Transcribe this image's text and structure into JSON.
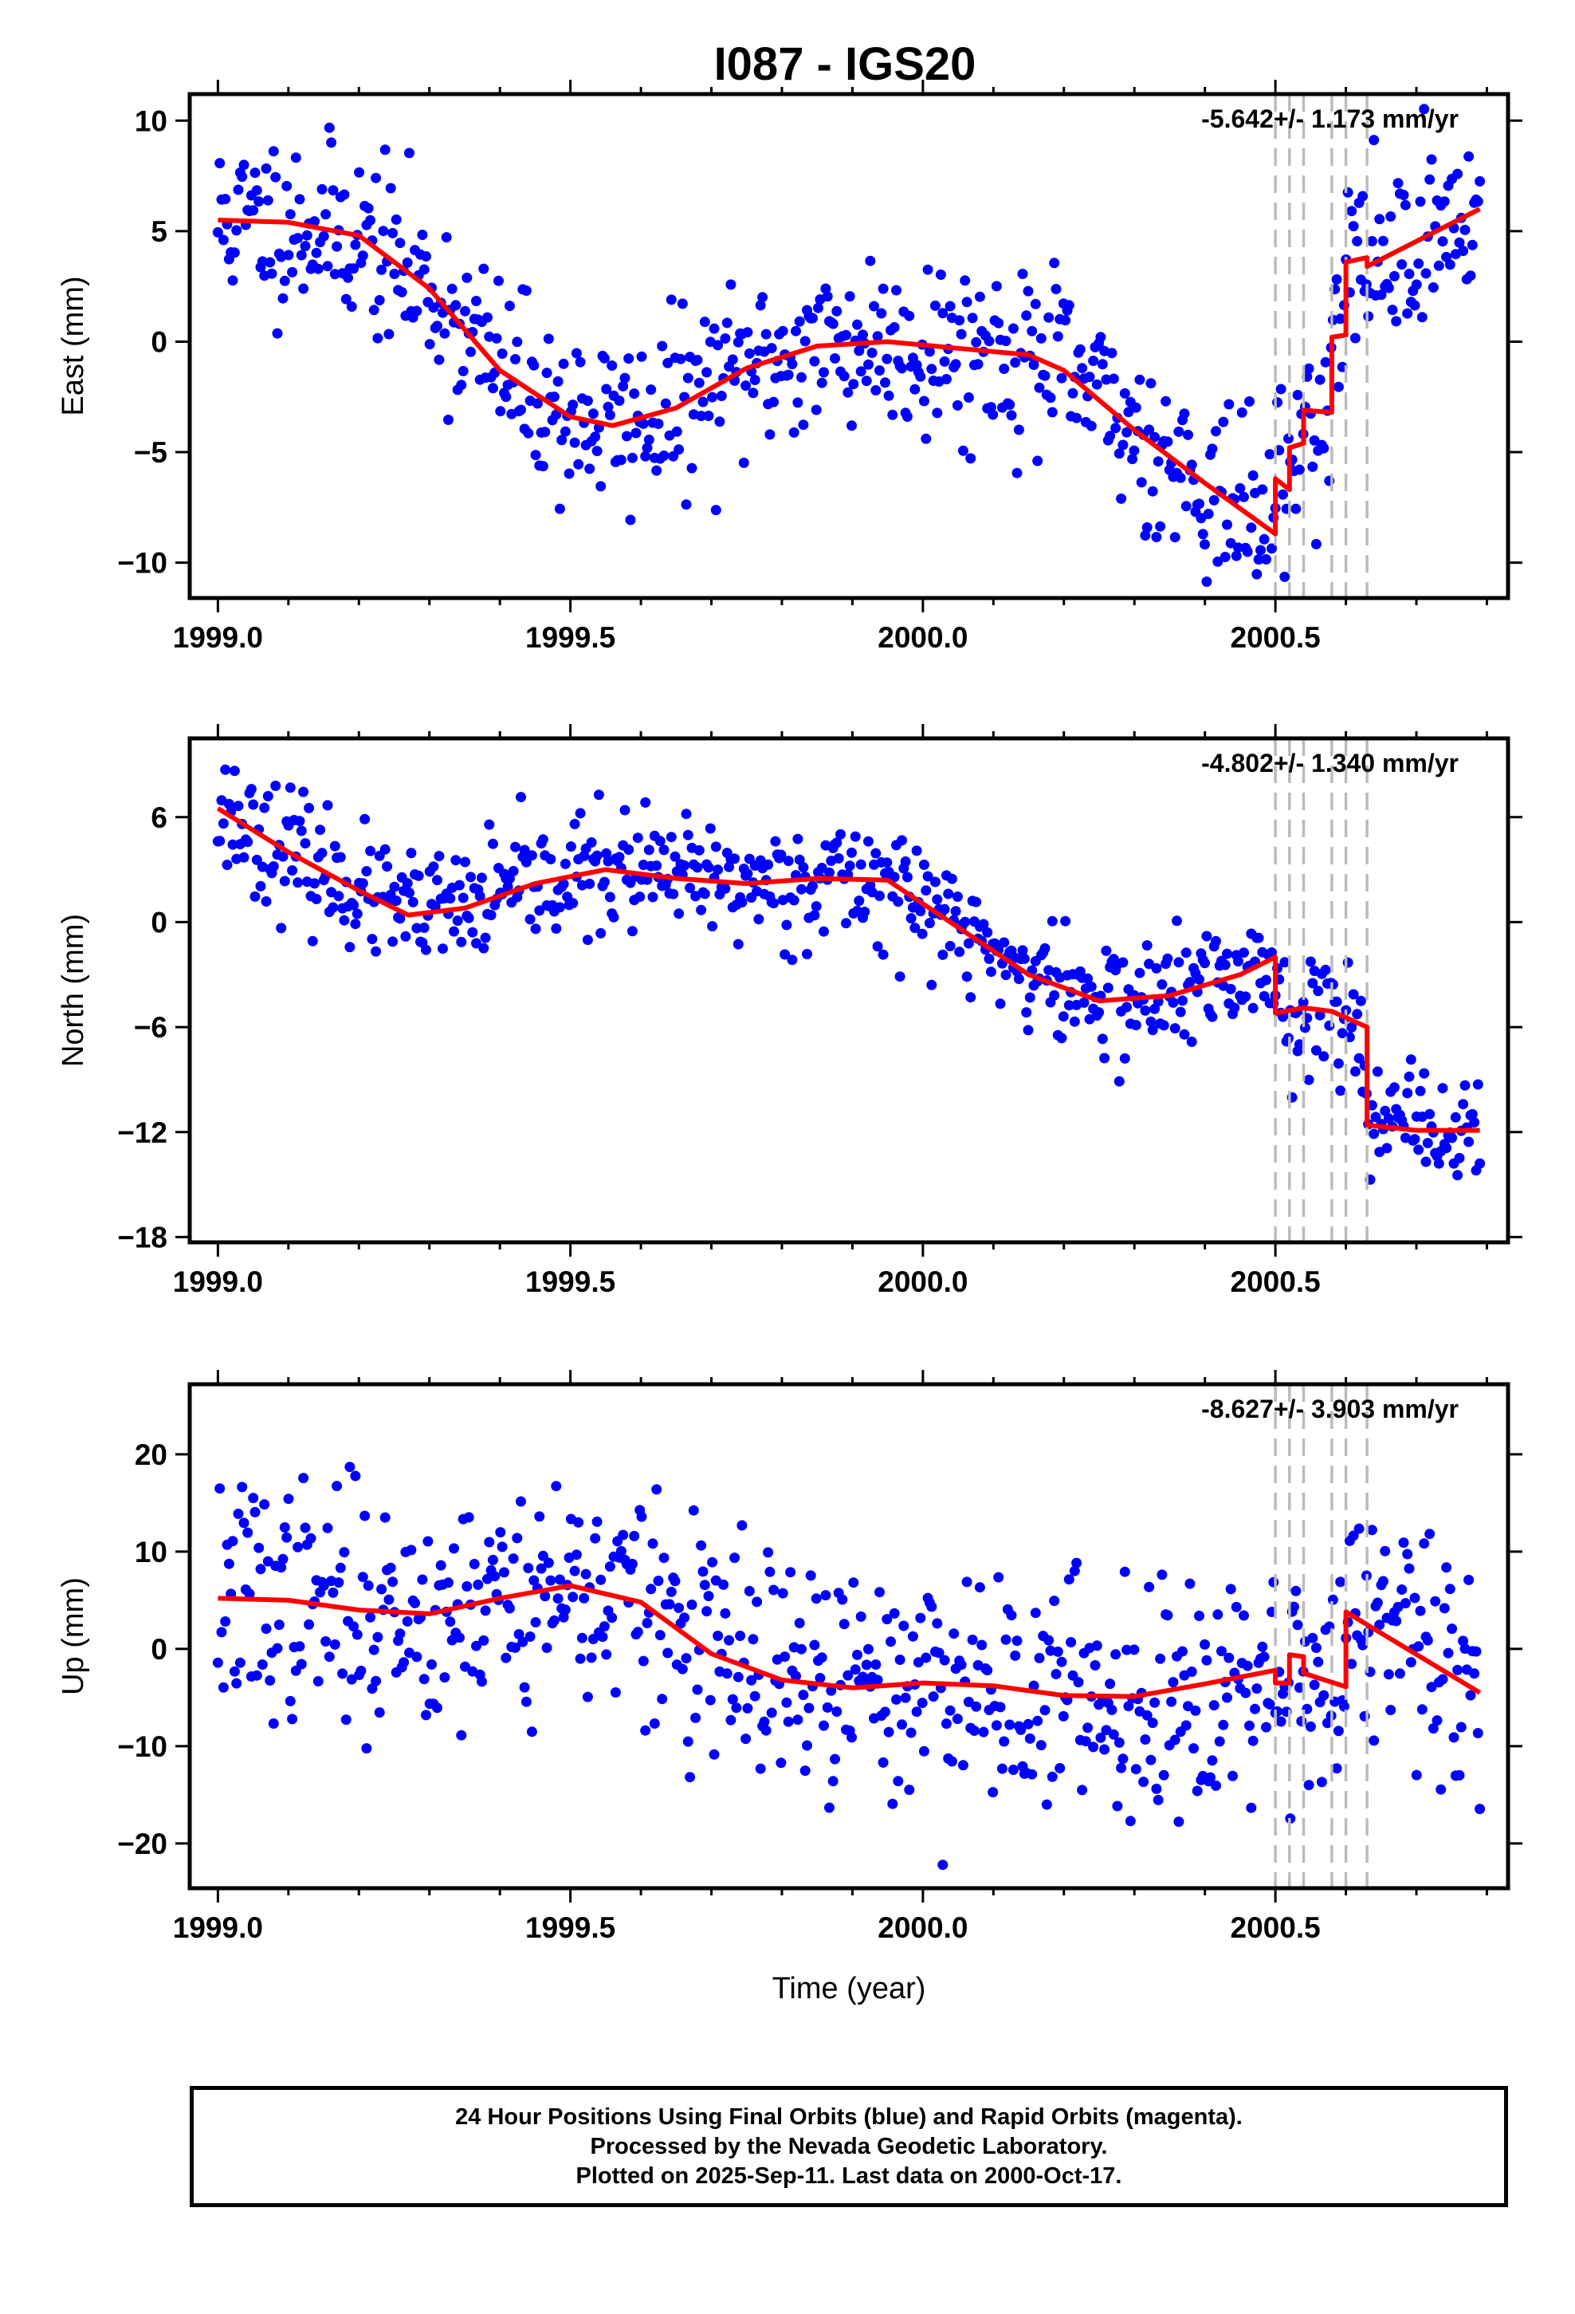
{
  "title": "I087 - IGS20",
  "colors": {
    "final_orbits": "#0000ff",
    "model_fit": "#ff0000",
    "offset_marker": "#bbbbbb",
    "frame": "#000000"
  },
  "offset_epochs": [
    2000.5,
    2000.52,
    2000.54,
    2000.58,
    2000.6,
    2000.63
  ],
  "chart_data": [
    {
      "type": "scatter",
      "panel": "east",
      "ylabel": "East (mm)",
      "xlabel": "",
      "rate_label": "-5.642+/- 1.173 mm/yr",
      "xlim": [
        1998.96,
        2000.83
      ],
      "ylim": [
        -11.6,
        11.2
      ],
      "xticks": [
        1999.0,
        1999.5,
        2000.0,
        2000.5
      ],
      "xtick_labels": [
        "1999.0",
        "1999.5",
        "2000.0",
        "2000.5"
      ],
      "yticks": [
        -10,
        -5,
        0,
        5,
        10
      ],
      "ytick_labels": [
        "−10",
        "−5",
        "0",
        "5",
        "10"
      ],
      "series": [
        {
          "name": "24 hour positions (final orbits)",
          "kind": "points",
          "noise": 2.0,
          "seed": 11,
          "points_per_year": 380,
          "x_start": 1999.0,
          "x_end": 2000.79
        },
        {
          "name": "model fit",
          "kind": "line",
          "x": [
            1999.0,
            1999.1,
            1999.2,
            1999.3,
            1999.4,
            1999.5,
            1999.56,
            1999.65,
            1999.75,
            1999.85,
            1999.95,
            2000.05,
            2000.15,
            2000.2,
            2000.3,
            2000.4,
            2000.5,
            2000.5,
            2000.52,
            2000.52,
            2000.54,
            2000.54,
            2000.58,
            2000.58,
            2000.6,
            2000.6,
            2000.63,
            2000.63,
            2000.79
          ],
          "y": [
            5.5,
            5.4,
            4.8,
            2.4,
            -1.3,
            -3.4,
            -3.8,
            -3.0,
            -1.2,
            -0.2,
            0.0,
            -0.3,
            -0.6,
            -1.3,
            -4.0,
            -6.4,
            -8.7,
            -6.2,
            -6.7,
            -4.8,
            -4.6,
            -3.1,
            -3.2,
            0.2,
            0.3,
            3.6,
            3.8,
            3.4,
            6.0
          ]
        }
      ]
    },
    {
      "type": "scatter",
      "panel": "north",
      "ylabel": "North (mm)",
      "xlabel": "",
      "rate_label": "-4.802+/- 1.340 mm/yr",
      "xlim": [
        1998.96,
        2000.83
      ],
      "ylim": [
        -18.3,
        10.5
      ],
      "xticks": [
        1999.0,
        1999.5,
        2000.0,
        2000.5
      ],
      "xtick_labels": [
        "1999.0",
        "1999.5",
        "2000.0",
        "2000.5"
      ],
      "yticks": [
        -18,
        -12,
        -6,
        0,
        6
      ],
      "ytick_labels": [
        "−18",
        "−12",
        "−6",
        "0",
        "6"
      ],
      "series": [
        {
          "name": "24 hour positions (final orbits)",
          "kind": "points",
          "noise": 1.7,
          "seed": 23,
          "points_per_year": 380,
          "x_start": 1999.0,
          "x_end": 2000.79
        },
        {
          "name": "model fit",
          "kind": "line",
          "x": [
            1999.0,
            1999.1,
            1999.2,
            1999.27,
            1999.35,
            1999.45,
            1999.55,
            1999.65,
            1999.75,
            1999.85,
            1999.95,
            2000.05,
            2000.15,
            2000.25,
            2000.35,
            2000.45,
            2000.5,
            2000.5,
            2000.54,
            2000.58,
            2000.63,
            2000.63,
            2000.7,
            2000.79
          ],
          "y": [
            6.5,
            4.0,
            1.8,
            0.4,
            0.8,
            2.2,
            3.0,
            2.5,
            2.2,
            2.5,
            2.4,
            -0.3,
            -3.0,
            -4.5,
            -4.2,
            -3.0,
            -2.0,
            -5.2,
            -4.9,
            -5.1,
            -6.0,
            -11.6,
            -11.9,
            -11.9
          ]
        }
      ]
    },
    {
      "type": "scatter",
      "panel": "up",
      "ylabel": "Up (mm)",
      "xlabel": "Time (year)",
      "rate_label": "-8.627+/- 3.903 mm/yr",
      "xlim": [
        1998.96,
        2000.83
      ],
      "ylim": [
        -24.6,
        27.2
      ],
      "xticks": [
        1999.0,
        1999.5,
        2000.0,
        2000.5
      ],
      "xtick_labels": [
        "1999.0",
        "1999.5",
        "2000.0",
        "2000.5"
      ],
      "yticks": [
        -20,
        -10,
        0,
        10,
        20
      ],
      "ytick_labels": [
        "−20",
        "−10",
        "0",
        "10",
        "20"
      ],
      "series": [
        {
          "name": "24 hour positions (final orbits)",
          "kind": "points",
          "noise": 6.0,
          "seed": 37,
          "points_per_year": 380,
          "x_start": 1999.0,
          "x_end": 2000.79
        },
        {
          "name": "model fit",
          "kind": "line",
          "x": [
            1999.0,
            1999.1,
            1999.2,
            1999.3,
            1999.4,
            1999.5,
            1999.6,
            1999.7,
            1999.8,
            1999.9,
            2000.0,
            2000.1,
            2000.2,
            2000.3,
            2000.4,
            2000.5,
            2000.5,
            2000.52,
            2000.52,
            2000.54,
            2000.54,
            2000.6,
            2000.6,
            2000.79
          ],
          "y": [
            5.2,
            5.0,
            4.0,
            3.6,
            5.2,
            6.5,
            4.8,
            -0.5,
            -3.2,
            -4.0,
            -3.5,
            -3.8,
            -4.8,
            -4.9,
            -3.6,
            -2.2,
            -3.5,
            -3.5,
            -0.6,
            -0.8,
            -2.5,
            -3.9,
            3.8,
            -4.5
          ]
        }
      ]
    }
  ],
  "caption": {
    "line1": "24 Hour Positions Using Final Orbits (blue) and Rapid Orbits (magenta).",
    "line2": "Processed by the Nevada Geodetic Laboratory.",
    "line3": "Plotted on 2025-Sep-11. Last data on 2000-Oct-17."
  }
}
